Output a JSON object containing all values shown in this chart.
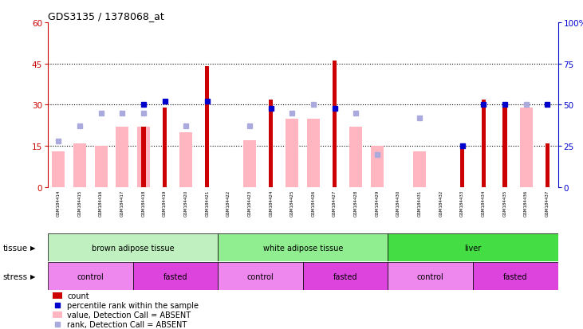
{
  "title": "GDS3135 / 1378068_at",
  "samples": [
    "GSM184414",
    "GSM184415",
    "GSM184416",
    "GSM184417",
    "GSM184418",
    "GSM184419",
    "GSM184420",
    "GSM184421",
    "GSM184422",
    "GSM184423",
    "GSM184424",
    "GSM184425",
    "GSM184426",
    "GSM184427",
    "GSM184428",
    "GSM184429",
    "GSM184430",
    "GSM184431",
    "GSM184432",
    "GSM184433",
    "GSM184434",
    "GSM184435",
    "GSM184436",
    "GSM184437"
  ],
  "count_values": [
    null,
    null,
    null,
    null,
    22,
    29,
    null,
    44,
    null,
    null,
    32,
    null,
    null,
    46,
    null,
    null,
    null,
    null,
    null,
    15,
    32,
    29,
    null,
    16
  ],
  "absent_value_bars": [
    13,
    16,
    15,
    22,
    22,
    null,
    20,
    null,
    null,
    17,
    null,
    25,
    25,
    null,
    22,
    15,
    null,
    13,
    null,
    null,
    null,
    null,
    29,
    null
  ],
  "percentile_rank_dots_pct": [
    null,
    null,
    null,
    null,
    50,
    52,
    null,
    52,
    null,
    null,
    48,
    null,
    null,
    48,
    null,
    null,
    null,
    null,
    null,
    25,
    50,
    50,
    null,
    50
  ],
  "absent_rank_dots_pct": [
    28,
    37,
    45,
    45,
    45,
    null,
    37,
    null,
    null,
    37,
    null,
    45,
    50,
    null,
    45,
    20,
    null,
    42,
    null,
    null,
    null,
    null,
    50,
    null
  ],
  "tissue_groups": [
    {
      "label": "brown adipose tissue",
      "start": 0,
      "end": 8,
      "color": "#c0f0c0"
    },
    {
      "label": "white adipose tissue",
      "start": 8,
      "end": 16,
      "color": "#90ee90"
    },
    {
      "label": "liver",
      "start": 16,
      "end": 24,
      "color": "#44dd44"
    }
  ],
  "stress_groups": [
    {
      "label": "control",
      "start": 0,
      "end": 4,
      "color": "#ee88ee"
    },
    {
      "label": "fasted",
      "start": 4,
      "end": 8,
      "color": "#dd44dd"
    },
    {
      "label": "control",
      "start": 8,
      "end": 12,
      "color": "#ee88ee"
    },
    {
      "label": "fasted",
      "start": 12,
      "end": 16,
      "color": "#dd44dd"
    },
    {
      "label": "control",
      "start": 16,
      "end": 20,
      "color": "#ee88ee"
    },
    {
      "label": "fasted",
      "start": 20,
      "end": 24,
      "color": "#dd44dd"
    }
  ],
  "left_ylim": [
    0,
    60
  ],
  "left_yticks": [
    0,
    15,
    30,
    45,
    60
  ],
  "right_ylim": [
    0,
    100
  ],
  "right_yticks": [
    0,
    25,
    50,
    75,
    100
  ],
  "bar_color_red": "#cc0000",
  "bar_color_pink": "#ffb6c1",
  "dot_color_blue": "#0000cc",
  "dot_color_lightblue": "#aaaadd",
  "bg_color": "#ffffff",
  "axis_color_left": "#cc0000",
  "axis_color_right": "#0000cc",
  "tick_bg_color": "#d3d3d3"
}
